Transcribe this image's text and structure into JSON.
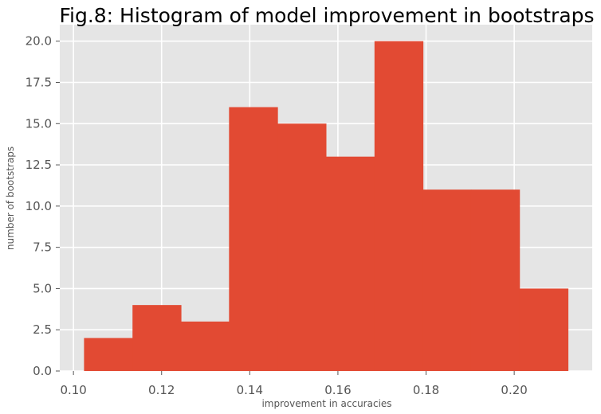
{
  "chart_data": {
    "type": "bar",
    "title": "Fig.8: Histogram of model improvement in bootstraps",
    "xlabel": "improvement in accuracies",
    "ylabel": "number of bootstraps",
    "bins": [
      {
        "start": 0.1024,
        "end": 0.1134,
        "count": 2
      },
      {
        "start": 0.1134,
        "end": 0.1244,
        "count": 4
      },
      {
        "start": 0.1244,
        "end": 0.1353,
        "count": 3
      },
      {
        "start": 0.1353,
        "end": 0.1463,
        "count": 16
      },
      {
        "start": 0.1463,
        "end": 0.1573,
        "count": 15
      },
      {
        "start": 0.1573,
        "end": 0.1683,
        "count": 13
      },
      {
        "start": 0.1683,
        "end": 0.1793,
        "count": 20
      },
      {
        "start": 0.1793,
        "end": 0.1902,
        "count": 11
      },
      {
        "start": 0.1902,
        "end": 0.2012,
        "count": 11
      },
      {
        "start": 0.2012,
        "end": 0.2122,
        "count": 5
      }
    ],
    "xlim": [
      0.0969,
      0.2177
    ],
    "ylim": [
      0,
      21
    ],
    "xticks": [
      "0.10",
      "0.12",
      "0.14",
      "0.16",
      "0.18",
      "0.20"
    ],
    "xtick_values": [
      0.1,
      0.12,
      0.14,
      0.16,
      0.18,
      0.2
    ],
    "yticks": [
      "0.0",
      "2.5",
      "5.0",
      "7.5",
      "10.0",
      "12.5",
      "15.0",
      "17.5",
      "20.0"
    ],
    "ytick_values": [
      0,
      2.5,
      5,
      7.5,
      10,
      12.5,
      15,
      17.5,
      20
    ],
    "grid": true,
    "colors": {
      "bar": "#E24A33",
      "background": "#E5E5E5",
      "grid": "#FFFFFF"
    }
  }
}
